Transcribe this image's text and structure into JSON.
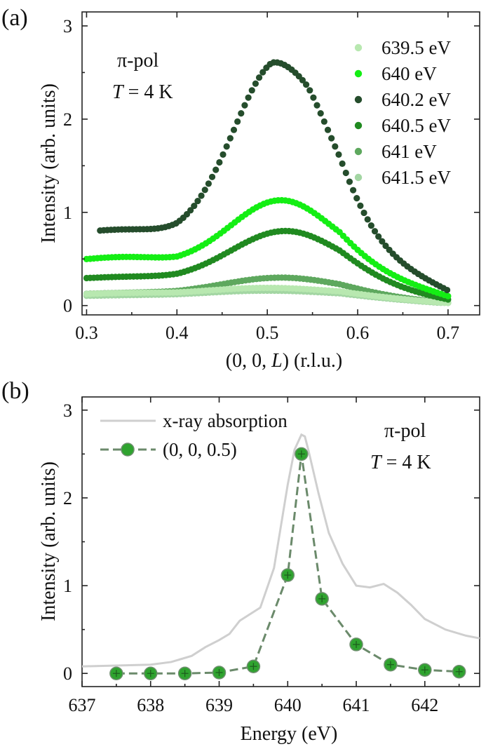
{
  "figure": {
    "panel_a_label": "(a)",
    "panel_b_label": "(b)"
  },
  "chart_data": [
    {
      "type": "scatter",
      "panel": "(a)",
      "title": "",
      "xlabel": "(0, 0, L) (r.l.u.)",
      "xlabel_parts": [
        "(0, 0, ",
        "L",
        ") (r.l.u.)"
      ],
      "ylabel": "Intensity (arb. units)",
      "xlim": [
        0.295,
        0.735
      ],
      "ylim": [
        -0.1,
        3.15
      ],
      "xticks": [
        0.3,
        0.4,
        0.5,
        0.6,
        0.7
      ],
      "xtick_labels": [
        "0.3",
        "0.4",
        "0.5",
        "0.6",
        "0.7"
      ],
      "yticks": [
        0,
        1,
        2,
        3
      ],
      "ytick_labels": [
        "0",
        "1",
        "2",
        "3"
      ],
      "grid": false,
      "legend_position": "top-right",
      "annotations": {
        "polarization": "π-pol",
        "temperature_symbol": "T",
        "temperature_value": " = 4 K"
      },
      "series": [
        {
          "name": "639.5 eV",
          "color": "#b8e8b0",
          "x_start": 0.3,
          "x_end": 0.7,
          "baseline": 0.12,
          "slope": 0.15,
          "peak": 0.07,
          "center": 0.5,
          "width": 0.065,
          "low_bump": 0.02
        },
        {
          "name": "640 eV",
          "color": "#14ee14",
          "x_start": 0.3,
          "x_end": 0.7,
          "baseline": 0.45,
          "slope": 0.6,
          "peak": 0.68,
          "center": 0.515,
          "width": 0.055,
          "low_bump": 0.08
        },
        {
          "name": "640.2 eV",
          "color": "#254d2c",
          "x_start": 0.315,
          "x_end": 0.7,
          "baseline": 0.72,
          "slope": 0.55,
          "peak": 1.92,
          "center": 0.515,
          "width": 0.052,
          "low_bump": 0.1
        },
        {
          "name": "640.5 eV",
          "color": "#208a20",
          "x_start": 0.3,
          "x_end": 0.7,
          "baseline": 0.27,
          "slope": 0.5,
          "peak": 0.53,
          "center": 0.52,
          "width": 0.06,
          "low_bump": 0.04
        },
        {
          "name": "641 eV",
          "color": "#5ea85e",
          "x_start": 0.3,
          "x_end": 0.7,
          "baseline": 0.12,
          "slope": 0.25,
          "peak": 0.18,
          "center": 0.515,
          "width": 0.065,
          "low_bump": 0.02
        },
        {
          "name": "641.5 eV",
          "color": "#a3d6a3",
          "x_start": 0.3,
          "x_end": 0.7,
          "baseline": 0.1,
          "slope": 0.2,
          "peak": 0.06,
          "center": 0.5,
          "width": 0.07,
          "low_bump": 0.01
        }
      ]
    },
    {
      "type": "line",
      "panel": "(b)",
      "title": "",
      "xlabel": "Energy (eV)",
      "ylabel": "Intensity (arb. units)",
      "xlim": [
        637.0,
        642.8
      ],
      "ylim": [
        -0.15,
        3.15
      ],
      "xticks": [
        637,
        638,
        639,
        640,
        641,
        642
      ],
      "xtick_labels": [
        "637",
        "638",
        "639",
        "640",
        "641",
        "642"
      ],
      "yticks": [
        0,
        1,
        2,
        3
      ],
      "ytick_labels": [
        "0",
        "1",
        "2",
        "3"
      ],
      "grid": false,
      "legend_position": "top-left",
      "annotations": {
        "polarization": "π-pol",
        "temperature_symbol": "T",
        "temperature_value": " = 4 K"
      },
      "series": [
        {
          "name": "x-ray absorption",
          "color": "#cfcfcf",
          "x": [
            637.0,
            637.5,
            638.0,
            638.3,
            638.6,
            638.8,
            639.0,
            639.15,
            639.3,
            639.5,
            639.6,
            639.8,
            640.0,
            640.1,
            640.2,
            640.25,
            640.3,
            640.45,
            640.6,
            640.8,
            641.0,
            641.2,
            641.4,
            641.6,
            641.8,
            642.0,
            642.3,
            642.6,
            642.8
          ],
          "y": [
            0.08,
            0.09,
            0.1,
            0.13,
            0.2,
            0.3,
            0.38,
            0.45,
            0.6,
            0.7,
            0.75,
            1.2,
            2.15,
            2.55,
            2.72,
            2.7,
            2.55,
            2.05,
            1.6,
            1.25,
            1.0,
            0.98,
            1.02,
            0.92,
            0.78,
            0.62,
            0.5,
            0.43,
            0.4
          ]
        },
        {
          "name": "(0, 0, 0.5)",
          "color": "#6b8a6b",
          "marker_color": "#2fa32f",
          "x": [
            637.5,
            638.0,
            638.5,
            639.0,
            639.5,
            640.0,
            640.2,
            640.5,
            641.0,
            641.5,
            642.0,
            642.5
          ],
          "y": [
            0.0,
            0.0,
            0.0,
            0.01,
            0.08,
            1.12,
            2.5,
            0.85,
            0.33,
            0.1,
            0.04,
            0.02
          ]
        }
      ]
    }
  ]
}
